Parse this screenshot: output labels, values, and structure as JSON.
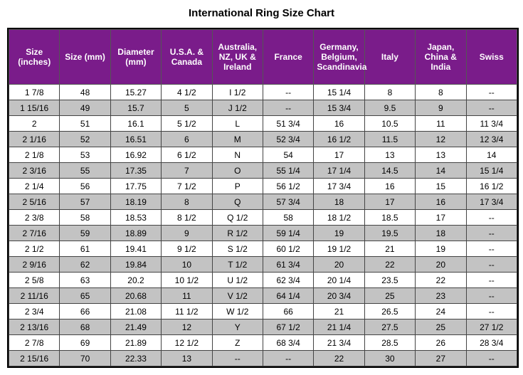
{
  "title": "International Ring Size Chart",
  "header_bg": "#7a1c8a",
  "header_fg": "#ffffff",
  "row_alt_bg": "#c3c3c3",
  "columns": [
    "Size (inches)",
    "Size (mm)",
    "Diameter (mm)",
    "U.S.A. & Canada",
    "Australia, NZ, UK & Ireland",
    "France",
    "Germany, Belgium, Scandinavia",
    "Italy",
    "Japan, China & India",
    "Swiss"
  ],
  "rows": [
    [
      "1  7/8",
      "48",
      "15.27",
      "4  1/2",
      "I  1/2",
      "--",
      "15  1/4",
      "8",
      "8",
      "--"
    ],
    [
      "1 15/16",
      "49",
      "15.7",
      "5",
      "J  1/2",
      "--",
      "15  3/4",
      "9.5",
      "9",
      "--"
    ],
    [
      "2",
      "51",
      "16.1",
      "5  1/2",
      "L",
      "51  3/4",
      "16",
      "10.5",
      "11",
      "11  3/4"
    ],
    [
      "2  1/16",
      "52",
      "16.51",
      "6",
      "M",
      "52  3/4",
      "16  1/2",
      "11.5",
      "12",
      "12  3/4"
    ],
    [
      "2  1/8",
      "53",
      "16.92",
      "6  1/2",
      "N",
      "54",
      "17",
      "13",
      "13",
      "14"
    ],
    [
      "2  3/16",
      "55",
      "17.35",
      "7",
      "O",
      "55  1/4",
      "17  1/4",
      "14.5",
      "14",
      "15  1/4"
    ],
    [
      "2  1/4",
      "56",
      "17.75",
      "7  1/2",
      "P",
      "56  1/2",
      "17  3/4",
      "16",
      "15",
      "16  1/2"
    ],
    [
      "2  5/16",
      "57",
      "18.19",
      "8",
      "Q",
      "57  3/4",
      "18",
      "17",
      "16",
      "17  3/4"
    ],
    [
      "2  3/8",
      "58",
      "18.53",
      "8  1/2",
      "Q  1/2",
      "58",
      "18  1/2",
      "18.5",
      "17",
      "--"
    ],
    [
      "2  7/16",
      "59",
      "18.89",
      "9",
      "R  1/2",
      "59  1/4",
      "19",
      "19.5",
      "18",
      "--"
    ],
    [
      "2  1/2",
      "61",
      "19.41",
      "9  1/2",
      "S  1/2",
      "60  1/2",
      "19  1/2",
      "21",
      "19",
      "--"
    ],
    [
      "2  9/16",
      "62",
      "19.84",
      "10",
      "T  1/2",
      "61  3/4",
      "20",
      "22",
      "20",
      "--"
    ],
    [
      "2  5/8",
      "63",
      "20.2",
      "10  1/2",
      "U  1/2",
      "62  3/4",
      "20  1/4",
      "23.5",
      "22",
      "--"
    ],
    [
      "2 11/16",
      "65",
      "20.68",
      "11",
      "V  1/2",
      "64  1/4",
      "20  3/4",
      "25",
      "23",
      "--"
    ],
    [
      "2  3/4",
      "66",
      "21.08",
      "11  1/2",
      "W  1/2",
      "66",
      "21",
      "26.5",
      "24",
      "--"
    ],
    [
      "2 13/16",
      "68",
      "21.49",
      "12",
      "Y",
      "67  1/2",
      "21  1/4",
      "27.5",
      "25",
      "27  1/2"
    ],
    [
      "2  7/8",
      "69",
      "21.89",
      "12  1/2",
      "Z",
      "68  3/4",
      "21  3/4",
      "28.5",
      "26",
      "28  3/4"
    ],
    [
      "2 15/16",
      "70",
      "22.33",
      "13",
      "--",
      "--",
      "22",
      "30",
      "27",
      "--"
    ]
  ]
}
